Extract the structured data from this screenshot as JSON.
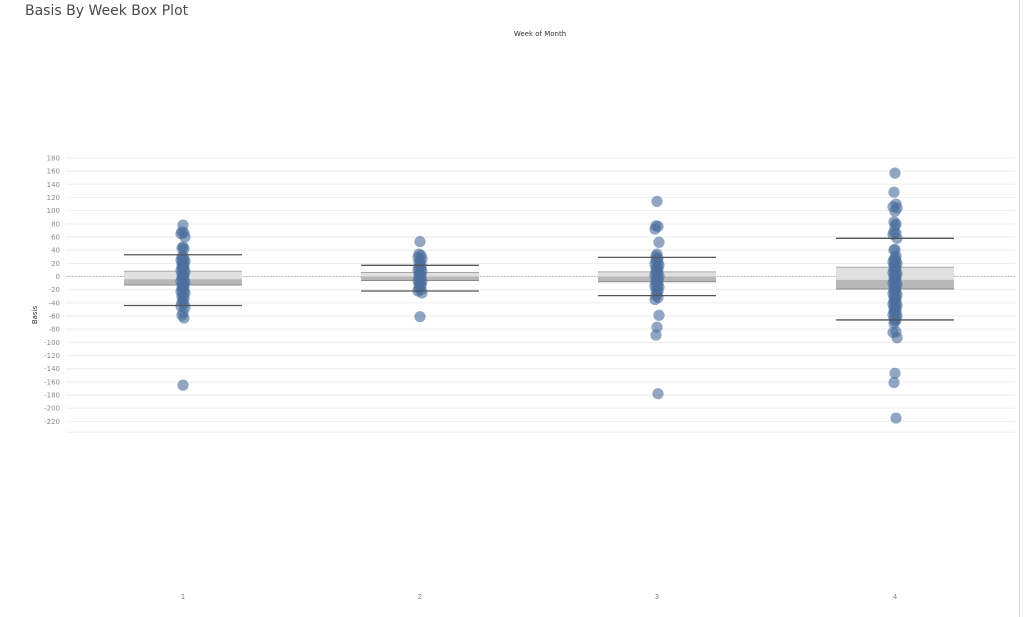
{
  "page": {
    "title": "Basis By Week Box Plot"
  },
  "chart_data": {
    "type": "box",
    "title": "Basis By Week Box Plot",
    "column_header": "Week of Month",
    "xlabel": "",
    "ylabel": "Basis",
    "categories": [
      "1",
      "2",
      "3",
      "4"
    ],
    "ylim": [
      -238,
      180
    ],
    "yticks": [
      180,
      160,
      140,
      120,
      100,
      80,
      60,
      40,
      20,
      0,
      -20,
      -40,
      -60,
      -80,
      -100,
      -120,
      -140,
      -160,
      -180,
      -200,
      -220
    ],
    "grid": true,
    "reference_line": 0,
    "colors": {
      "point": "#4e6f9e",
      "box_upper": "#e0e0e0",
      "box_lower": "#b8b8b8",
      "whisker": "#555555",
      "grid": "#eeeeee"
    },
    "boxes": [
      {
        "category": "1",
        "upper_whisker": 33,
        "q3": 8,
        "median": -4,
        "q1": -13,
        "lower_whisker": -44
      },
      {
        "category": "2",
        "upper_whisker": 17,
        "q3": 6,
        "median": 0,
        "q1": -6,
        "lower_whisker": -22
      },
      {
        "category": "3",
        "upper_whisker": 29,
        "q3": 7,
        "median": 0,
        "q1": -8,
        "lower_whisker": -29
      },
      {
        "category": "4",
        "upper_whisker": 58,
        "q3": 14,
        "median": -5,
        "q1": -19,
        "lower_whisker": -66
      }
    ],
    "points": [
      {
        "category": "1",
        "values": [
          78,
          68,
          66,
          65,
          60,
          45,
          43,
          42,
          31,
          29,
          27,
          25,
          23,
          21,
          19,
          17,
          15,
          13,
          11,
          9,
          7,
          5,
          3,
          1,
          -1,
          -3,
          -5,
          -7,
          -9,
          -11,
          -13,
          -15,
          -17,
          -19,
          -21,
          -23,
          -25,
          -27,
          -30,
          -33,
          -36,
          -39,
          -42,
          -45,
          -47,
          -55,
          -59,
          -63,
          -165
        ]
      },
      {
        "category": "2",
        "values": [
          53,
          34,
          32,
          29,
          27,
          25,
          21,
          18,
          16,
          14,
          12,
          10,
          8,
          6,
          4,
          2,
          0,
          -2,
          -4,
          -6,
          -8,
          -10,
          -12,
          -14,
          -16,
          -18,
          -20,
          -22,
          -25,
          -61
        ]
      },
      {
        "category": "3",
        "values": [
          114,
          77,
          76,
          72,
          52,
          34,
          31,
          28,
          26,
          24,
          21,
          19,
          17,
          14,
          12,
          10,
          8,
          6,
          4,
          2,
          0,
          -2,
          -4,
          -6,
          -8,
          -10,
          -12,
          -14,
          -16,
          -18,
          -20,
          -23,
          -26,
          -29,
          -32,
          -35,
          -59,
          -77,
          -89,
          -178
        ]
      },
      {
        "category": "4",
        "values": [
          157,
          128,
          110,
          106,
          104,
          99,
          83,
          80,
          77,
          68,
          66,
          64,
          58,
          41,
          40,
          31,
          28,
          26,
          24,
          22,
          20,
          18,
          16,
          14,
          12,
          10,
          8,
          6,
          4,
          2,
          0,
          -2,
          -4,
          -6,
          -8,
          -10,
          -12,
          -14,
          -16,
          -18,
          -20,
          -22,
          -24,
          -26,
          -28,
          -30,
          -32,
          -34,
          -36,
          -38,
          -40,
          -42,
          -44,
          -46,
          -48,
          -50,
          -52,
          -54,
          -56,
          -58,
          -60,
          -62,
          -64,
          -66,
          -68,
          -71,
          -84,
          -85,
          -93,
          -147,
          -161,
          -215
        ]
      }
    ]
  }
}
